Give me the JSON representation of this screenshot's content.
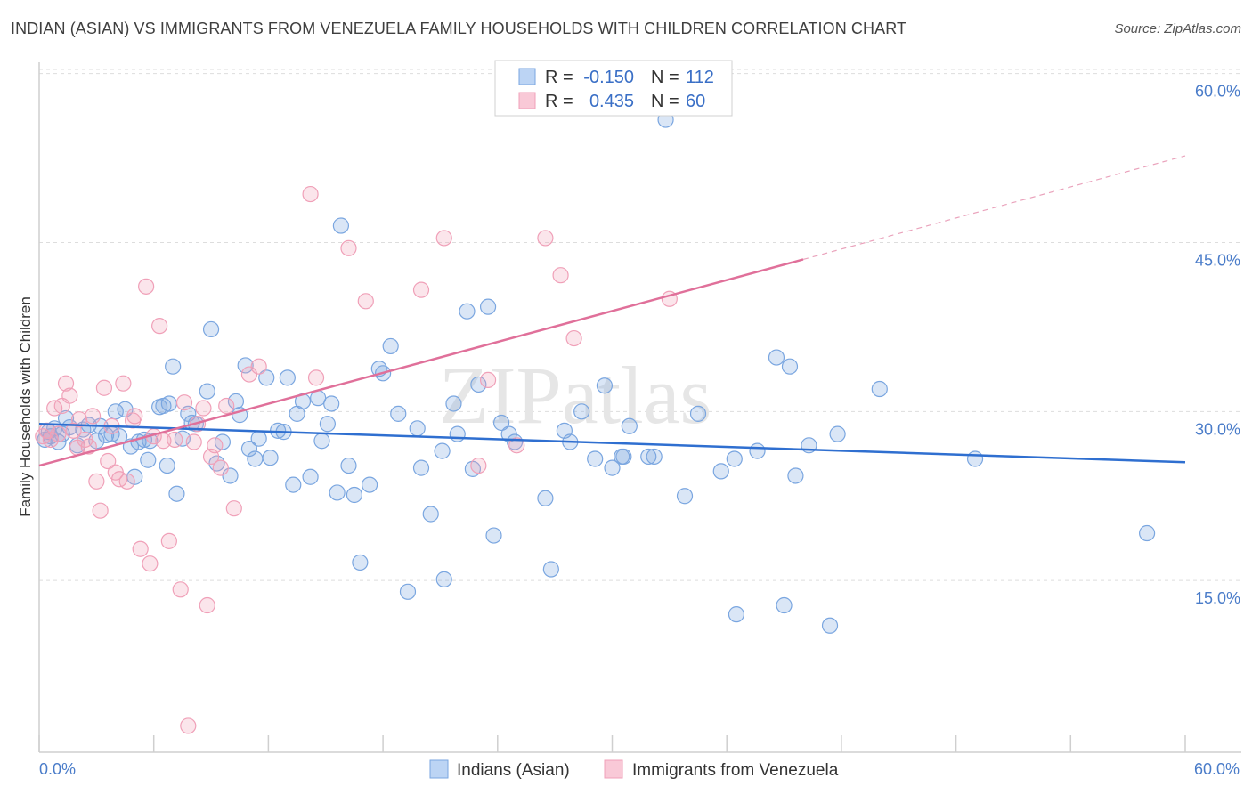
{
  "title": "INDIAN (ASIAN) VS IMMIGRANTS FROM VENEZUELA FAMILY HOUSEHOLDS WITH CHILDREN CORRELATION CHART",
  "source": "Source: ZipAtlas.com",
  "watermark": "ZIPatlas",
  "chart_data": {
    "type": "scatter",
    "title": "INDIAN (ASIAN) VS IMMIGRANTS FROM VENEZUELA FAMILY HOUSEHOLDS WITH CHILDREN CORRELATION CHART",
    "xlabel": "",
    "ylabel": "Family Households with Children",
    "xlim": [
      0,
      60
    ],
    "ylim": [
      0,
      61
    ],
    "x_tick_labels": [
      "0.0%",
      "60.0%"
    ],
    "y_ticks": [
      {
        "value": 15,
        "label": "15.0%"
      },
      {
        "value": 30,
        "label": "30.0%"
      },
      {
        "value": 45,
        "label": "45.0%"
      },
      {
        "value": 60,
        "label": "60.0%"
      }
    ],
    "grid": true,
    "legend": [
      {
        "name": "Indians (Asian)",
        "color": "#7aa6e0",
        "R_label": "R =",
        "R": "-0.150",
        "N_label": "N =",
        "N": "112"
      },
      {
        "name": "Immigrants from Venezuela",
        "color": "#f0a0b8",
        "R_label": "R =",
        "R": "0.435",
        "N_label": "N =",
        "N": "60"
      }
    ],
    "series": [
      {
        "name": "Indians (Asian)",
        "color": "#7aa6e0",
        "trend": {
          "x0": 0,
          "y0": 28.9,
          "x1": 60,
          "y1": 25.5,
          "dashed_from": null
        },
        "points": [
          [
            0.3,
            27.5
          ],
          [
            0.5,
            28.2
          ],
          [
            0.6,
            27.8
          ],
          [
            0.8,
            28.5
          ],
          [
            1.0,
            27.3
          ],
          [
            1.2,
            28.0
          ],
          [
            1.4,
            29.4
          ],
          [
            1.6,
            28.6
          ],
          [
            2.0,
            27.0
          ],
          [
            2.3,
            28.4
          ],
          [
            2.6,
            28.8
          ],
          [
            3.0,
            27.4
          ],
          [
            3.2,
            28.7
          ],
          [
            3.5,
            27.9
          ],
          [
            3.8,
            28.0
          ],
          [
            4.0,
            30.0
          ],
          [
            4.2,
            27.8
          ],
          [
            4.5,
            30.2
          ],
          [
            4.8,
            26.9
          ],
          [
            5.0,
            24.2
          ],
          [
            5.2,
            27.3
          ],
          [
            5.5,
            27.5
          ],
          [
            5.7,
            25.7
          ],
          [
            5.8,
            27.4
          ],
          [
            6.3,
            30.4
          ],
          [
            6.5,
            30.5
          ],
          [
            6.7,
            25.2
          ],
          [
            6.8,
            30.7
          ],
          [
            7.0,
            34.0
          ],
          [
            7.2,
            22.7
          ],
          [
            7.5,
            27.6
          ],
          [
            7.8,
            29.8
          ],
          [
            8.0,
            29.0
          ],
          [
            8.2,
            28.9
          ],
          [
            8.8,
            31.8
          ],
          [
            9.0,
            37.3
          ],
          [
            9.3,
            25.4
          ],
          [
            9.6,
            27.3
          ],
          [
            10.0,
            24.3
          ],
          [
            10.3,
            30.9
          ],
          [
            10.5,
            29.7
          ],
          [
            10.8,
            34.1
          ],
          [
            11.0,
            26.7
          ],
          [
            11.3,
            25.8
          ],
          [
            11.5,
            27.6
          ],
          [
            11.9,
            33.0
          ],
          [
            12.1,
            25.9
          ],
          [
            12.5,
            28.3
          ],
          [
            12.8,
            28.2
          ],
          [
            13.0,
            33.0
          ],
          [
            13.3,
            23.5
          ],
          [
            13.5,
            29.8
          ],
          [
            13.8,
            30.9
          ],
          [
            14.2,
            24.2
          ],
          [
            14.6,
            31.2
          ],
          [
            14.8,
            27.4
          ],
          [
            15.1,
            28.9
          ],
          [
            15.3,
            30.7
          ],
          [
            15.6,
            22.8
          ],
          [
            15.8,
            46.5
          ],
          [
            16.2,
            25.2
          ],
          [
            16.5,
            22.6
          ],
          [
            16.8,
            16.6
          ],
          [
            17.3,
            23.5
          ],
          [
            17.8,
            33.8
          ],
          [
            18.0,
            33.4
          ],
          [
            18.4,
            35.8
          ],
          [
            18.8,
            29.8
          ],
          [
            19.3,
            14.0
          ],
          [
            19.8,
            28.5
          ],
          [
            20.0,
            25.0
          ],
          [
            20.5,
            20.9
          ],
          [
            21.1,
            26.5
          ],
          [
            21.2,
            15.1
          ],
          [
            21.7,
            30.7
          ],
          [
            21.9,
            28.0
          ],
          [
            22.4,
            38.9
          ],
          [
            22.7,
            24.9
          ],
          [
            23.0,
            32.4
          ],
          [
            23.5,
            39.3
          ],
          [
            23.8,
            19.0
          ],
          [
            24.2,
            29.0
          ],
          [
            24.6,
            28.0
          ],
          [
            24.9,
            27.3
          ],
          [
            26.5,
            22.3
          ],
          [
            26.8,
            16.0
          ],
          [
            27.5,
            28.3
          ],
          [
            27.8,
            27.3
          ],
          [
            28.4,
            30.0
          ],
          [
            29.1,
            25.8
          ],
          [
            29.6,
            32.3
          ],
          [
            30.0,
            25.0
          ],
          [
            30.5,
            26.0
          ],
          [
            30.6,
            26.0
          ],
          [
            30.9,
            28.7
          ],
          [
            31.9,
            26.0
          ],
          [
            32.2,
            26.0
          ],
          [
            32.8,
            55.9
          ],
          [
            33.8,
            22.5
          ],
          [
            34.5,
            29.8
          ],
          [
            35.7,
            24.7
          ],
          [
            36.4,
            25.8
          ],
          [
            36.5,
            12.0
          ],
          [
            37.6,
            26.5
          ],
          [
            38.6,
            34.8
          ],
          [
            39.0,
            12.8
          ],
          [
            39.3,
            34.0
          ],
          [
            39.6,
            24.3
          ],
          [
            40.3,
            27.0
          ],
          [
            41.4,
            11.0
          ],
          [
            41.8,
            28.0
          ],
          [
            44.0,
            32.0
          ],
          [
            49.0,
            25.8
          ],
          [
            58.0,
            19.2
          ]
        ]
      },
      {
        "name": "Immigrants from Venezuela",
        "color": "#f0a0b8",
        "trend": {
          "x0": 0,
          "y0": 25.2,
          "x1": 40,
          "y1": 43.5,
          "dashed_from": 40,
          "x2": 60,
          "y2": 52.7
        },
        "points": [
          [
            0.2,
            27.8
          ],
          [
            0.4,
            28.3
          ],
          [
            0.6,
            27.5
          ],
          [
            0.8,
            30.3
          ],
          [
            1.0,
            28.0
          ],
          [
            1.2,
            30.5
          ],
          [
            1.4,
            32.5
          ],
          [
            1.6,
            31.4
          ],
          [
            1.8,
            28.3
          ],
          [
            2.0,
            26.8
          ],
          [
            2.1,
            29.3
          ],
          [
            2.4,
            27.5
          ],
          [
            2.6,
            26.9
          ],
          [
            2.8,
            29.6
          ],
          [
            3.0,
            23.8
          ],
          [
            3.2,
            21.2
          ],
          [
            3.4,
            32.1
          ],
          [
            3.6,
            25.6
          ],
          [
            3.8,
            28.7
          ],
          [
            4.0,
            24.6
          ],
          [
            4.2,
            24.0
          ],
          [
            4.4,
            32.5
          ],
          [
            4.6,
            23.8
          ],
          [
            4.9,
            29.2
          ],
          [
            5.0,
            29.6
          ],
          [
            5.3,
            17.8
          ],
          [
            5.6,
            41.1
          ],
          [
            5.8,
            16.5
          ],
          [
            6.0,
            27.8
          ],
          [
            6.3,
            37.6
          ],
          [
            6.5,
            27.4
          ],
          [
            6.8,
            18.5
          ],
          [
            7.1,
            27.5
          ],
          [
            7.4,
            14.2
          ],
          [
            7.6,
            30.8
          ],
          [
            7.8,
            2.1
          ],
          [
            8.1,
            27.3
          ],
          [
            8.3,
            28.9
          ],
          [
            8.6,
            30.3
          ],
          [
            8.8,
            12.8
          ],
          [
            9.0,
            26.0
          ],
          [
            9.2,
            27.0
          ],
          [
            9.5,
            25.0
          ],
          [
            9.8,
            30.5
          ],
          [
            10.2,
            21.4
          ],
          [
            11.0,
            33.3
          ],
          [
            11.5,
            34.0
          ],
          [
            14.2,
            49.3
          ],
          [
            14.5,
            33.0
          ],
          [
            16.2,
            44.5
          ],
          [
            17.1,
            39.8
          ],
          [
            20.0,
            40.8
          ],
          [
            21.2,
            45.4
          ],
          [
            23.0,
            25.2
          ],
          [
            23.5,
            32.8
          ],
          [
            25.0,
            27.0
          ],
          [
            26.5,
            45.4
          ],
          [
            27.3,
            42.1
          ],
          [
            28.0,
            36.5
          ],
          [
            33.0,
            40.0
          ]
        ]
      }
    ]
  }
}
